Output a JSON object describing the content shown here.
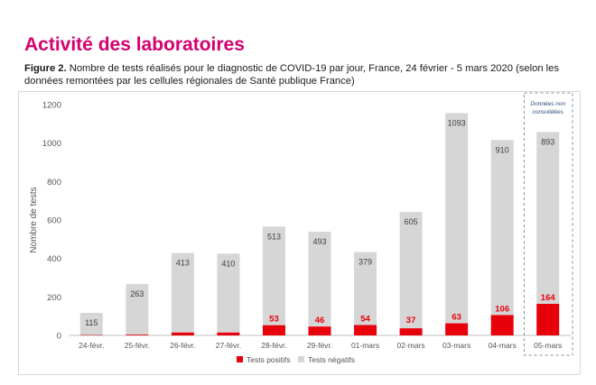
{
  "heading": "Activité des laboratoires",
  "caption": {
    "label": "Figure 2.",
    "text": "Nombre de tests réalisés pour le diagnostic de COVID-19 par jour, France, 24 février - 5 mars 2020 (selon les données remontées par les cellules régionales de Santé publique France)"
  },
  "colors": {
    "positive": "#e8000b",
    "negative": "#d6d6d6",
    "heading": "#d6006f",
    "note": "#2e4c7e"
  },
  "chart_data": {
    "type": "bar",
    "stacked": true,
    "categories": [
      "24-févr.",
      "25-févr.",
      "26-févr.",
      "27-févr.",
      "28-févr.",
      "29-févr.",
      "01-mars",
      "02-mars",
      "03-mars",
      "04-mars",
      "05-mars"
    ],
    "series": [
      {
        "name": "Tests positifs",
        "values": [
          2,
          4,
          15,
          15,
          53,
          46,
          54,
          37,
          63,
          106,
          164
        ],
        "labels": [
          "",
          "",
          "",
          "",
          "53",
          "46",
          "54",
          "37",
          "63",
          "106",
          "164"
        ]
      },
      {
        "name": "Tests négatifs",
        "values": [
          115,
          263,
          413,
          410,
          513,
          493,
          379,
          605,
          1093,
          910,
          893
        ],
        "labels": [
          "115",
          "263",
          "413",
          "410",
          "513",
          "493",
          "379",
          "605",
          "1093",
          "910",
          "893"
        ]
      }
    ],
    "ylabel": "Nombre de tests",
    "ylim": [
      0,
      1200
    ],
    "yticks": [
      0,
      200,
      400,
      600,
      800,
      1000,
      1200
    ],
    "grid": false,
    "legend_position": "bottom",
    "annotation": {
      "lines": [
        "Données non",
        "consolidées"
      ],
      "category": "05-mars"
    }
  }
}
